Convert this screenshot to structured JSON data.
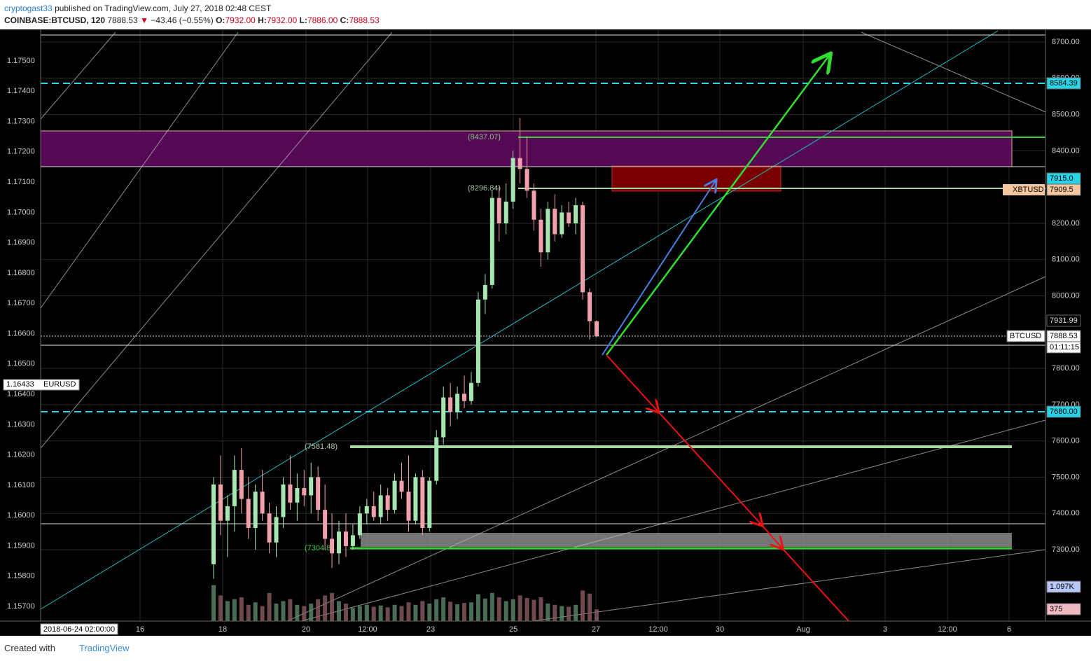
{
  "header": {
    "author": "cryptogast33",
    "published": "published on TradingView.com, July 27, 2018 02:48 CEST",
    "symbol": "COINBASE:BTCUSD, 120",
    "last": "7888.53",
    "change": "−43.46 (−0.55%)",
    "open_label": "O:",
    "open": "7932.00",
    "high_label": "H:",
    "high": "7932.00",
    "low_label": "L:",
    "low": "7886.00",
    "close_label": "C:",
    "close": "7888.53"
  },
  "price_axis": [
    "8700.00",
    "8600.00",
    "8500.00",
    "8400.00",
    "8200.00",
    "8100.00",
    "8000.00",
    "7800.00",
    "7700.00",
    "7600.00",
    "7500.00",
    "7400.00",
    "7300.00"
  ],
  "left_axis": [
    "1.17500",
    "1.17400",
    "1.17300",
    "1.17200",
    "1.17100",
    "1.17000",
    "1.16900",
    "1.16800",
    "1.16700",
    "1.16600",
    "1.16500",
    "1.16400",
    "1.16300",
    "1.16200",
    "1.16100",
    "1.16000",
    "1.15900",
    "1.15800",
    "1.15700"
  ],
  "left_badge": {
    "value": "1.16433",
    "name": "EURUSD"
  },
  "time_axis": [
    "2018-06-24 02:00:00",
    "16",
    "18",
    "20",
    "12:00",
    "23",
    "25",
    "27",
    "12:00",
    "30",
    "Aug",
    "3",
    "12:00",
    "6"
  ],
  "badges": {
    "level_high": "8584.39",
    "xbt_bid": "7915.0",
    "xbt_name": "XBTUSD",
    "xbt_price": "7909.5",
    "prev": "7931.99",
    "btc_name": "BTCUSD",
    "btc_price": "7888.53",
    "countdown": "01:11:15",
    "level_low": "7680.00",
    "volume_ma": "1.097K",
    "volume": "375"
  },
  "annotations": [
    "(8437.07)",
    "(8296.84)",
    "(7581.48)",
    "(7304.8"
  ],
  "candles": [
    [
      7260,
      7500,
      7220,
      7480
    ],
    [
      7480,
      7560,
      7340,
      7380
    ],
    [
      7380,
      7450,
      7280,
      7420
    ],
    [
      7420,
      7560,
      7350,
      7520
    ],
    [
      7520,
      7580,
      7400,
      7440
    ],
    [
      7440,
      7500,
      7330,
      7360
    ],
    [
      7360,
      7480,
      7300,
      7460
    ],
    [
      7460,
      7520,
      7380,
      7400
    ],
    [
      7400,
      7430,
      7290,
      7320
    ],
    [
      7320,
      7420,
      7280,
      7390
    ],
    [
      7390,
      7500,
      7360,
      7480
    ],
    [
      7480,
      7560,
      7410,
      7430
    ],
    [
      7430,
      7510,
      7380,
      7470
    ],
    [
      7470,
      7520,
      7420,
      7450
    ],
    [
      7450,
      7540,
      7400,
      7500
    ],
    [
      7500,
      7530,
      7380,
      7410
    ],
    [
      7410,
      7480,
      7300,
      7330
    ],
    [
      7330,
      7400,
      7250,
      7290
    ],
    [
      7290,
      7380,
      7260,
      7350
    ],
    [
      7350,
      7400,
      7280,
      7310
    ],
    [
      7310,
      7370,
      7300,
      7340
    ],
    [
      7340,
      7420,
      7330,
      7400
    ],
    [
      7400,
      7440,
      7370,
      7420
    ],
    [
      7420,
      7460,
      7380,
      7390
    ],
    [
      7390,
      7480,
      7370,
      7450
    ],
    [
      7450,
      7470,
      7380,
      7410
    ],
    [
      7410,
      7510,
      7400,
      7490
    ],
    [
      7490,
      7540,
      7440,
      7460
    ],
    [
      7460,
      7560,
      7350,
      7380
    ],
    [
      7380,
      7510,
      7370,
      7500
    ],
    [
      7500,
      7520,
      7340,
      7360
    ],
    [
      7360,
      7500,
      7350,
      7490
    ],
    [
      7490,
      7630,
      7480,
      7610
    ],
    [
      7610,
      7750,
      7590,
      7720
    ],
    [
      7720,
      7760,
      7640,
      7680
    ],
    [
      7680,
      7750,
      7660,
      7730
    ],
    [
      7730,
      7780,
      7690,
      7710
    ],
    [
      7710,
      7790,
      7700,
      7760
    ],
    [
      7760,
      8010,
      7750,
      7990
    ],
    [
      7990,
      8060,
      7950,
      8030
    ],
    [
      8030,
      8290,
      8020,
      8270
    ],
    [
      8270,
      8300,
      8150,
      8200
    ],
    [
      8200,
      8310,
      8170,
      8260
    ],
    [
      8260,
      8400,
      8240,
      8380
    ],
    [
      8380,
      8490,
      8310,
      8350
    ],
    [
      8350,
      8440,
      8270,
      8290
    ],
    [
      8290,
      8310,
      8180,
      8210
    ],
    [
      8210,
      8240,
      8080,
      8120
    ],
    [
      8120,
      8260,
      8100,
      8240
    ],
    [
      8240,
      8280,
      8150,
      8170
    ],
    [
      8170,
      8250,
      8160,
      8230
    ],
    [
      8230,
      8260,
      8190,
      8200
    ],
    [
      8200,
      8270,
      8170,
      8250
    ],
    [
      8250,
      8260,
      7990,
      8010
    ],
    [
      8010,
      8020,
      7880,
      7930
    ],
    [
      7930,
      7932,
      7886,
      7888.53
    ]
  ],
  "volumes": [
    1150,
    820,
    640,
    700,
    760,
    520,
    600,
    480,
    900,
    560,
    640,
    700,
    520,
    480,
    560,
    700,
    820,
    900,
    640,
    560,
    420,
    480,
    520,
    460,
    500,
    440,
    520,
    480,
    600,
    520,
    640,
    560,
    700,
    760,
    620,
    540,
    580,
    600,
    860,
    720,
    900,
    760,
    640,
    700,
    820,
    740,
    680,
    760,
    560,
    520,
    480,
    460,
    520,
    980,
    880,
    375
  ],
  "footer": {
    "created": "Created with",
    "brand": "TradingView"
  }
}
